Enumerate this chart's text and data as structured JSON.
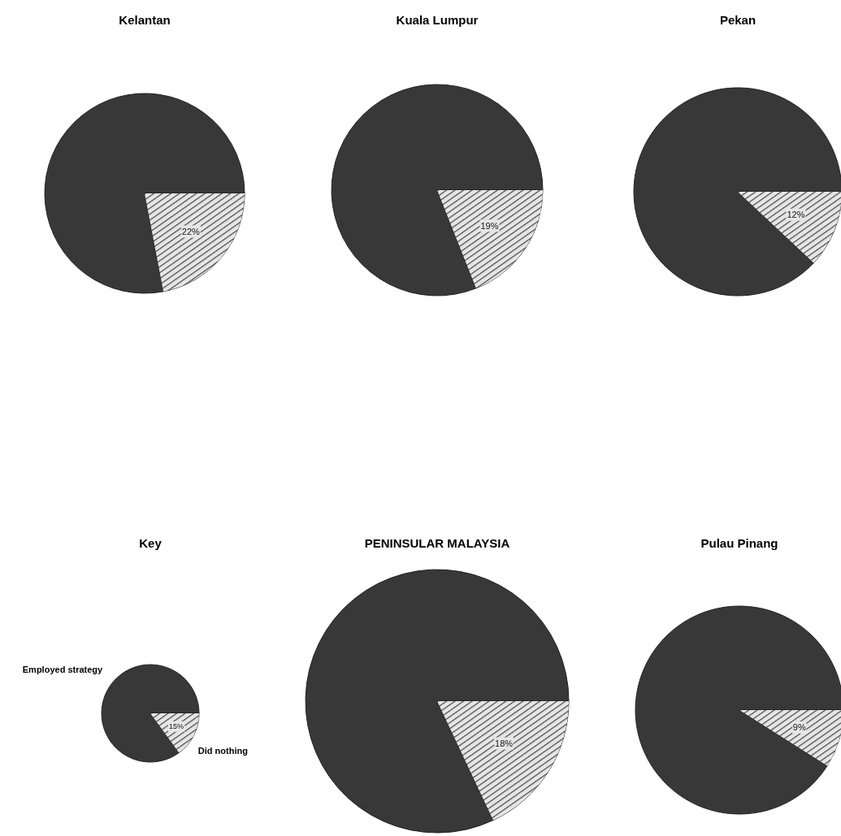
{
  "chart_data": [
    {
      "type": "pie",
      "title": "Kelantan",
      "categories": [
        null,
        null
      ],
      "values": [
        78,
        22
      ],
      "colors": [
        "#383838",
        "#e6e6e6"
      ],
      "value_labels": [
        null,
        "22%"
      ]
    },
    {
      "type": "pie",
      "title": "Kuala Lumpur",
      "categories": [
        null,
        null
      ],
      "values": [
        81,
        19
      ],
      "colors": [
        "#383838",
        "#e6e6e6"
      ],
      "value_labels": [
        null,
        "19%"
      ]
    },
    {
      "type": "pie",
      "title": "Pekan",
      "categories": [
        null,
        null
      ],
      "values": [
        88,
        12
      ],
      "colors": [
        "#383838",
        "#e6e6e6"
      ],
      "value_labels": [
        null,
        "12%"
      ]
    },
    {
      "type": "pie",
      "title": "Key",
      "categories": [
        "Employed strategy",
        "Did nothing"
      ],
      "values": [
        85,
        15
      ],
      "colors": [
        "#383838",
        "#e6e6e6"
      ],
      "value_labels": [
        null,
        "15%"
      ]
    },
    {
      "type": "pie",
      "title": "PENINSULAR MALAYSIA",
      "categories": [
        null,
        null
      ],
      "values": [
        82,
        18
      ],
      "colors": [
        "#383838",
        "#e6e6e6"
      ],
      "value_labels": [
        null,
        "18%"
      ]
    },
    {
      "type": "pie",
      "title": "Pulau Pinang",
      "categories": [
        null,
        null
      ],
      "values": [
        91,
        9
      ],
      "colors": [
        "#383838",
        "#e6e6e6"
      ],
      "value_labels": [
        null,
        "9%"
      ]
    }
  ]
}
